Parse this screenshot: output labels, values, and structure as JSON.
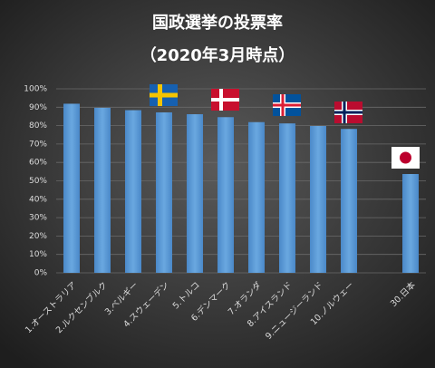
{
  "chart_data": {
    "type": "bar",
    "title": "国政選挙の投票率",
    "subtitle": "（2020年3月時点）",
    "categories": [
      "1.オーストラリア",
      "2.ルクセンブルク",
      "3.ベルギー",
      "4.スウェーデン",
      "5.トルコ",
      "6.デンマーク",
      "7.オランダ",
      "8.アイスランド",
      "9.ニュージーランド",
      "10.ノルウェー",
      null,
      "30.日本"
    ],
    "values": [
      91.9,
      89.7,
      88.4,
      87.2,
      86.2,
      84.6,
      81.9,
      81.2,
      79.8,
      78.2,
      null,
      53.7
    ],
    "color": "#5b9bd5",
    "ylim": [
      0,
      100
    ],
    "yticks": [
      {
        "value": 0,
        "label": "0%"
      },
      {
        "value": 10,
        "label": "10%"
      },
      {
        "value": 20,
        "label": "20%"
      },
      {
        "value": 30,
        "label": "30%"
      },
      {
        "value": 40,
        "label": "40%"
      },
      {
        "value": 50,
        "label": "50%"
      },
      {
        "value": 60,
        "label": "60%"
      },
      {
        "value": 70,
        "label": "70%"
      },
      {
        "value": 80,
        "label": "80%"
      },
      {
        "value": 90,
        "label": "90%"
      },
      {
        "value": 100,
        "label": "100%"
      }
    ],
    "grid": true
  }
}
